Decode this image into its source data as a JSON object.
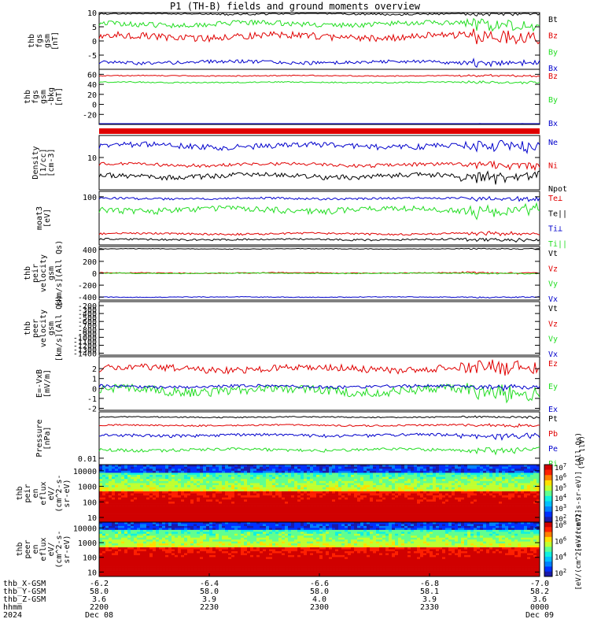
{
  "title": "P1 (TH-B) fields and ground moments overview",
  "colors": {
    "black": "#000000",
    "red": "#e00000",
    "green": "#22dd22",
    "blue": "#0000cc"
  },
  "chart_data": [
    {
      "type": "line",
      "ylabel": [
        "thb",
        "fgs",
        "gsm",
        "[nT]"
      ],
      "ylim": [
        -10,
        10
      ],
      "yticks": [
        -5,
        0,
        5,
        10
      ],
      "series": [
        {
          "name": "Bt",
          "color": "black",
          "level": 9.6,
          "amp": 0.4
        },
        {
          "name": "Bz",
          "color": "red",
          "level": 1.5,
          "amp": 1.2
        },
        {
          "name": "By",
          "color": "green",
          "level": 6.0,
          "amp": 0.9
        },
        {
          "name": "Bx",
          "color": "blue",
          "level": -7.5,
          "amp": 0.6
        }
      ]
    },
    {
      "type": "line",
      "ylabel": [
        "thb",
        "fgs",
        "gsm",
        "-bkg",
        "[nT]"
      ],
      "ylim": [
        -40,
        70
      ],
      "yticks": [
        -20,
        0,
        20,
        40,
        60
      ],
      "series": [
        {
          "name": "Bz",
          "color": "red",
          "level": 57,
          "amp": 1.0
        },
        {
          "name": "By",
          "color": "green",
          "level": 44,
          "amp": 1.2
        },
        {
          "name": "Bx",
          "color": "blue",
          "level": -39,
          "amp": 0.4
        }
      ]
    },
    {
      "type": "line",
      "ylabel": [
        "Density",
        "[1/cc]",
        "[cm-3]"
      ],
      "ylim": [
        2,
        30
      ],
      "log": true,
      "yticks": [
        10
      ],
      "series": [
        {
          "name": "Ne",
          "color": "blue",
          "level": 18,
          "amp": 2.5
        },
        {
          "name": "Ni",
          "color": "red",
          "level": 7.0,
          "amp": 0.6
        },
        {
          "name": "Npot",
          "color": "black",
          "level": 4.0,
          "amp": 0.5
        }
      ]
    },
    {
      "type": "line",
      "ylabel": [
        "moat3",
        "[eV]"
      ],
      "ylim": [
        5,
        140
      ],
      "log": true,
      "yticks": [
        100
      ],
      "series": [
        {
          "name": "Te⊥",
          "color": "red",
          "level": 10,
          "amp": 0.6
        },
        {
          "name": "Te||",
          "color": "black",
          "level": 7,
          "amp": 0.4
        },
        {
          "name": "Ti⊥",
          "color": "blue",
          "level": 90,
          "amp": 6
        },
        {
          "name": "Ti||",
          "color": "green",
          "level": 45,
          "amp": 8
        }
      ]
    },
    {
      "type": "line",
      "ylabel": [
        "thb",
        "peir",
        "velocity",
        "gsm",
        "[km/s](All Qs)"
      ],
      "ylim": [
        -450,
        450
      ],
      "yticks": [
        -400,
        -200,
        0,
        200,
        400
      ],
      "series": [
        {
          "name": "Vt",
          "color": "black",
          "level": 410,
          "amp": 5
        },
        {
          "name": "Vz",
          "color": "red",
          "level": 5,
          "amp": 8
        },
        {
          "name": "Vy",
          "color": "green",
          "level": 0,
          "amp": 6
        },
        {
          "name": "Vx",
          "color": "blue",
          "level": -400,
          "amp": 6
        }
      ]
    },
    {
      "type": "line",
      "ylabel": [
        "thb",
        "peer",
        "velocity",
        "gsm",
        "[km/s](All Qs)"
      ],
      "ylim": [
        -1450,
        -100
      ],
      "yticks": [
        -1400,
        -1200,
        -1000,
        -800,
        -600,
        -400,
        -200
      ],
      "extra_ticks": [
        -1300,
        -1100,
        -900,
        -700,
        -500,
        -300
      ],
      "series": [
        {
          "name": "Vt",
          "color": "black",
          "level": null,
          "amp": 0
        },
        {
          "name": "Vz",
          "color": "red",
          "level": null,
          "amp": 0
        },
        {
          "name": "Vy",
          "color": "green",
          "level": null,
          "amp": 0
        },
        {
          "name": "Vx",
          "color": "blue",
          "level": null,
          "amp": 0
        }
      ]
    },
    {
      "type": "line",
      "ylabel": [
        "E=-VxB",
        "[mV/m]"
      ],
      "ylim": [
        -2.2,
        3.2
      ],
      "yticks": [
        -2,
        -1,
        0,
        1,
        2
      ],
      "series": [
        {
          "name": "Ez",
          "color": "red",
          "level": 2.0,
          "amp": 0.35
        },
        {
          "name": "Ey",
          "color": "green",
          "level": -0.2,
          "amp": 0.45
        },
        {
          "name": "Ex",
          "color": "blue",
          "level": 0.2,
          "amp": 0.15
        }
      ]
    },
    {
      "type": "line",
      "ylabel": [
        "Pressure",
        "[nPa]"
      ],
      "ylim": [
        0.005,
        1.5
      ],
      "log": true,
      "yticks": [
        0.01
      ],
      "series": [
        {
          "name": "Pt",
          "color": "black",
          "level": 0.85,
          "amp": 0.05
        },
        {
          "name": "Pb",
          "color": "red",
          "level": 0.35,
          "amp": 0.03
        },
        {
          "name": "Pe",
          "color": "blue",
          "level": 0.12,
          "amp": 0.02
        },
        {
          "name": "Pi",
          "color": "green",
          "level": 0.025,
          "amp": 0.004
        }
      ],
      "legend_note": "(All Qs)"
    },
    {
      "type": "heatmap",
      "ylabel": [
        "thb",
        "peir",
        "en",
        "eflux",
        "eV/",
        "(cm^2-s-",
        "sr-eV)"
      ],
      "ylim": [
        5,
        25000
      ],
      "log": true,
      "yticks": [
        10,
        100,
        1000,
        10000
      ],
      "colorbar": {
        "labels": [
          "10^2",
          "10^3",
          "10^4",
          "10^5",
          "10^6",
          "10^7"
        ],
        "label": "[eV/(cm^2-s-sr-eV)] (All Qs)"
      }
    },
    {
      "type": "heatmap",
      "ylabel": [
        "thb",
        "peer",
        "en",
        "eflux",
        "eV/",
        "(cm^2-s-",
        "sr-eV)"
      ],
      "ylim": [
        5,
        25000
      ],
      "log": true,
      "yticks": [
        10,
        100,
        1000,
        10000
      ],
      "colorbar": {
        "labels": [
          "10^2",
          "10^4",
          "10^6",
          "10^8"
        ],
        "label": "[eV/(cm^2-s-sr-eV)]"
      }
    }
  ],
  "x_axis": {
    "rows": [
      {
        "label": "thb_X-GSM",
        "values": [
          "-6.2",
          "-6.4",
          "-6.6",
          "-6.8",
          "-7.0"
        ]
      },
      {
        "label": "thb_Y-GSM",
        "values": [
          "58.0",
          "58.0",
          "58.0",
          "58.1",
          "58.2"
        ]
      },
      {
        "label": "thb_Z-GSM",
        "values": [
          "3.6",
          "3.9",
          "4.0",
          "3.9",
          "3.6"
        ]
      },
      {
        "label": "hhmm",
        "values": [
          "2200",
          "2230",
          "2300",
          "2330",
          "0000"
        ]
      },
      {
        "label": "2024",
        "values": [
          "Dec 08",
          "",
          "",
          "",
          "Dec 09"
        ]
      }
    ]
  },
  "colorbar_label_top": "[eV/(cm^2-s-sr-eV)] (All Qs)",
  "colorbar_label_bottom": "[eV/(cm^2-s-sr-eV)]"
}
